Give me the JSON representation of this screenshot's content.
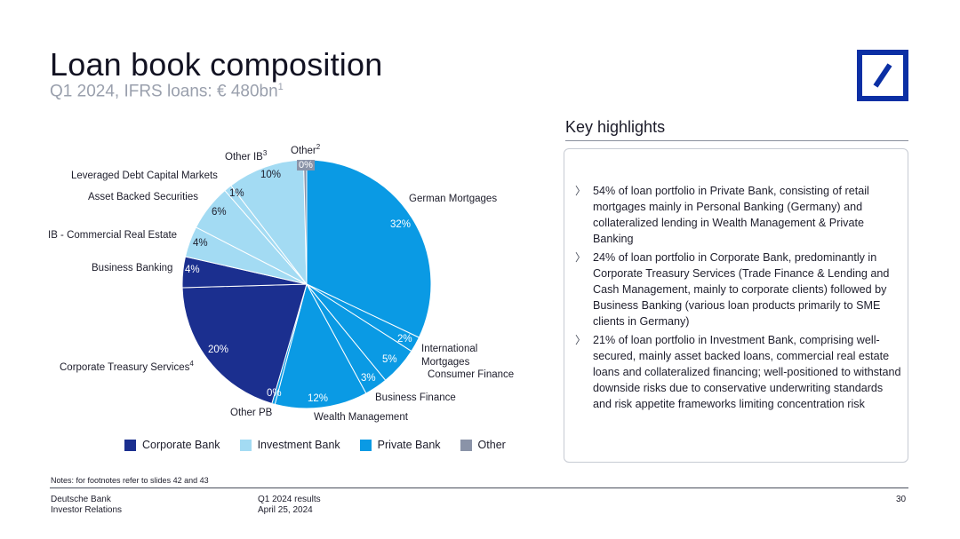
{
  "header": {
    "title": "Loan book composition",
    "subtitle": "Q1 2024, IFRS loans: € 480bn",
    "subtitle_footnote": "1"
  },
  "highlights": {
    "title": "Key highlights",
    "items": [
      "54% of loan portfolio in Private Bank, consisting of retail mortgages mainly in Personal Banking (Germany) and collateralized lending in Wealth Management & Private Banking",
      "24% of loan portfolio in Corporate Bank, predominantly in Corporate Treasury Services (Trade Finance & Lending and Cash Management, mainly to corporate clients) followed by Business Banking (various loan products primarily to SME clients in Germany)",
      "21% of loan portfolio in Investment Bank, comprising well-secured, mainly asset backed loans, commercial real estate loans and collateralized financing; well-positioned to withstand downside risks due to conservative underwriting standards and risk appetite frameworks limiting concentration risk"
    ]
  },
  "colors": {
    "corporate": "#1b2f8f",
    "investment": "#a3dbf3",
    "private": "#0a9ae4",
    "other": "#8a93a8",
    "logo": "#0b2fa4"
  },
  "chart_data": {
    "type": "pie",
    "title": "",
    "slices": [
      {
        "label": "German Mortgages",
        "value": 32,
        "display": "32%",
        "group": "private"
      },
      {
        "label": "International Mortgages",
        "value": 2,
        "display": "2%",
        "group": "private"
      },
      {
        "label": "Consumer Finance",
        "value": 5,
        "display": "5%",
        "group": "private"
      },
      {
        "label": "Business Finance",
        "value": 3,
        "display": "3%",
        "group": "private"
      },
      {
        "label": "Wealth Management",
        "value": 12,
        "display": "12%",
        "group": "private"
      },
      {
        "label": "Other PB",
        "value": 0,
        "display": "0%",
        "group": "private"
      },
      {
        "label": "Corporate Treasury Services",
        "footnote": "4",
        "value": 20,
        "display": "20%",
        "group": "corporate"
      },
      {
        "label": "Business Banking",
        "value": 4,
        "display": "4%",
        "group": "corporate"
      },
      {
        "label": "IB - Commercial Real Estate",
        "value": 4,
        "display": "4%",
        "group": "investment"
      },
      {
        "label": "Asset Backed Securities",
        "value": 6,
        "display": "6%",
        "group": "investment"
      },
      {
        "label": "Leveraged Debt Capital Markets",
        "value": 1,
        "display": "1%",
        "group": "investment"
      },
      {
        "label": "Other IB",
        "footnote": "3",
        "value": 10,
        "display": "10%",
        "group": "investment"
      },
      {
        "label": "Other",
        "footnote": "2",
        "value": 0,
        "display": "0%",
        "group": "other"
      }
    ],
    "legend": [
      {
        "name": "Corporate Bank",
        "color": "#1b2f8f"
      },
      {
        "name": "Investment Bank",
        "color": "#a3dbf3"
      },
      {
        "name": "Private Bank",
        "color": "#0a9ae4"
      },
      {
        "name": "Other",
        "color": "#8a93a8"
      }
    ],
    "legend_position": "bottom"
  },
  "footer": {
    "notes": "Notes: for footnotes refer to slides 42 and 43",
    "company": "Deutsche Bank",
    "department": "Investor Relations",
    "event": "Q1 2024 results",
    "date": "April 25, 2024",
    "page": "30"
  }
}
